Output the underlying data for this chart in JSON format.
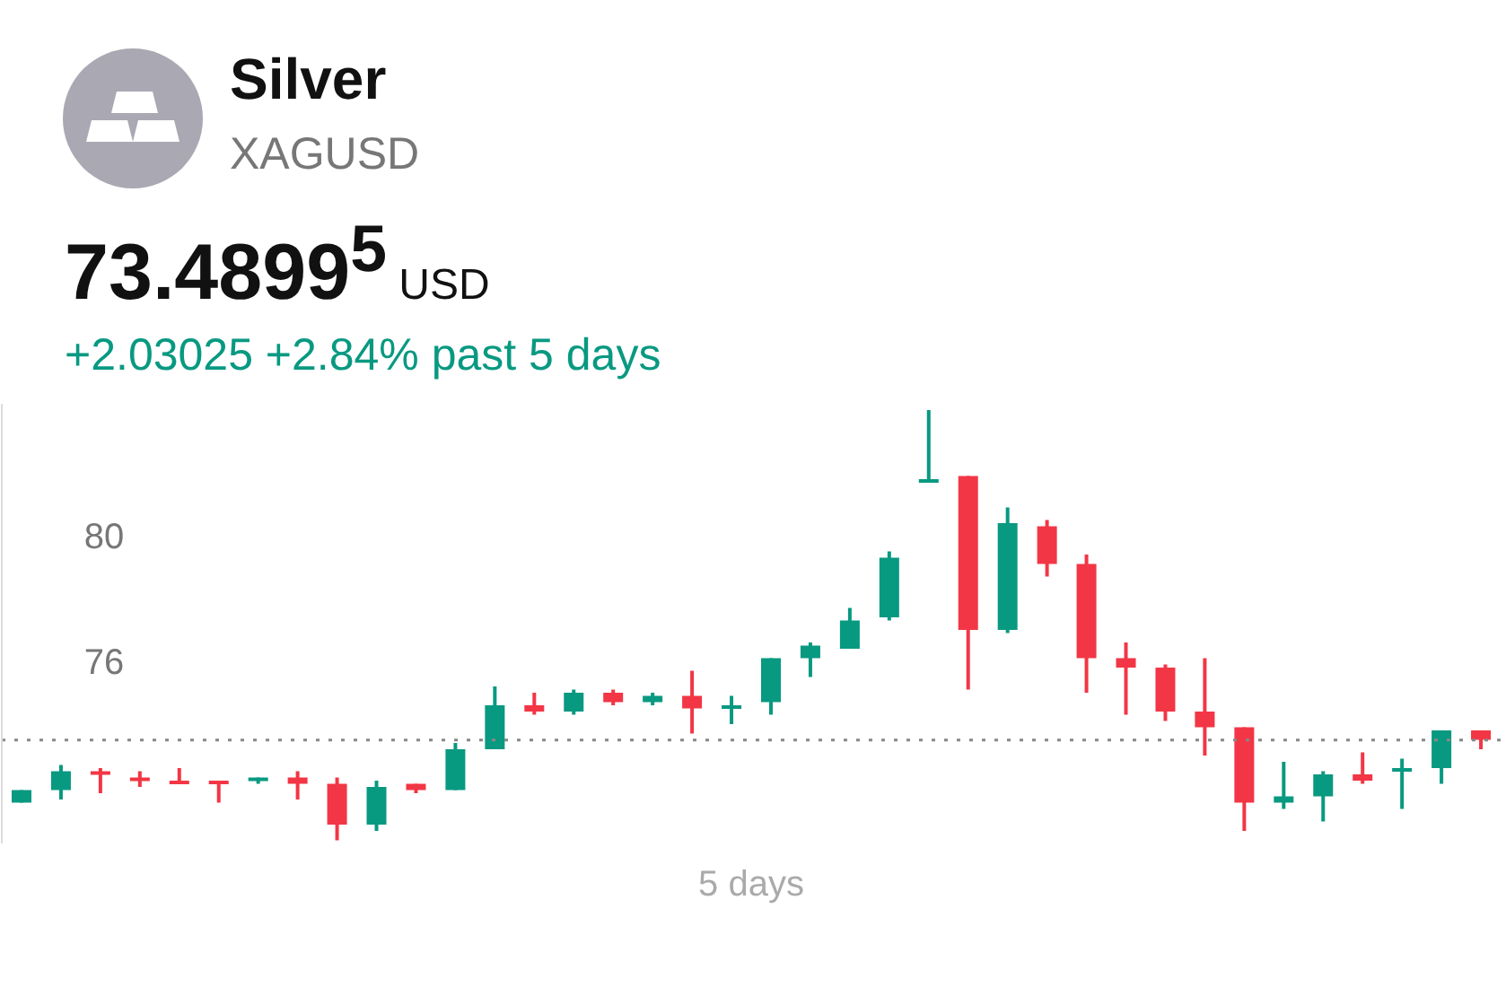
{
  "chart_data": {
    "type": "candlestick",
    "title": "Silver",
    "subtitle": "XAGUSD",
    "xlabel": "5 days",
    "annotations": [
      "73.4899$^{5}$ USD",
      "+2.03025 +2.84% past 5 days"
    ],
    "categories": [
      null,
      null,
      null,
      null,
      null,
      null,
      null,
      null,
      null,
      null,
      null,
      null,
      null,
      null,
      null,
      null,
      null,
      null,
      null,
      null,
      null,
      null,
      null,
      null,
      null,
      null,
      null,
      null,
      null,
      null,
      null,
      null,
      null,
      null,
      null,
      null,
      null,
      null
    ],
    "ohlc": [
      [
        71.5,
        71.9,
        71.5,
        71.9
      ],
      [
        71.9,
        72.7,
        71.6,
        72.5
      ],
      [
        72.5,
        72.6,
        71.8,
        72.4
      ],
      [
        72.3,
        72.5,
        72.0,
        72.2
      ],
      [
        72.2,
        72.6,
        72.1,
        72.1
      ],
      [
        72.2,
        72.2,
        71.5,
        72.1
      ],
      [
        72.2,
        72.3,
        72.1,
        72.3
      ],
      [
        72.3,
        72.5,
        71.6,
        72.1
      ],
      [
        72.1,
        72.3,
        70.3,
        70.8
      ],
      [
        70.8,
        72.2,
        70.6,
        72.0
      ],
      [
        72.1,
        72.1,
        71.8,
        71.9
      ],
      [
        71.9,
        73.4,
        71.9,
        73.2
      ],
      [
        73.2,
        75.2,
        73.2,
        74.6
      ],
      [
        74.6,
        75.0,
        74.3,
        74.4
      ],
      [
        74.4,
        75.1,
        74.3,
        75.0
      ],
      [
        75.0,
        75.1,
        74.6,
        74.7
      ],
      [
        74.7,
        75.0,
        74.6,
        74.9
      ],
      [
        74.9,
        75.7,
        73.7,
        74.5
      ],
      [
        74.5,
        74.9,
        74.0,
        74.6
      ],
      [
        74.7,
        76.1,
        74.3,
        76.1
      ],
      [
        76.1,
        76.6,
        75.5,
        76.5
      ],
      [
        76.4,
        77.7,
        76.4,
        77.3
      ],
      [
        77.4,
        79.5,
        77.3,
        79.3
      ],
      [
        81.7,
        84.0,
        81.7,
        81.8
      ],
      [
        81.9,
        81.9,
        75.1,
        77.0
      ],
      [
        77.0,
        80.9,
        76.9,
        80.4
      ],
      [
        80.3,
        80.5,
        78.7,
        79.1
      ],
      [
        79.1,
        79.4,
        75.0,
        76.1
      ],
      [
        76.1,
        76.6,
        74.3,
        75.8
      ],
      [
        75.8,
        75.9,
        74.1,
        74.4
      ],
      [
        74.4,
        76.1,
        73.0,
        73.9
      ],
      [
        73.9,
        73.9,
        70.6,
        71.5
      ],
      [
        71.5,
        72.8,
        71.3,
        71.7
      ],
      [
        71.7,
        72.5,
        70.9,
        72.4
      ],
      [
        72.4,
        73.1,
        72.1,
        72.2
      ],
      [
        72.5,
        72.9,
        71.3,
        72.6
      ],
      [
        72.6,
        73.8,
        72.1,
        73.8
      ],
      [
        73.8,
        73.8,
        73.2,
        73.5
      ]
    ],
    "colors": [
      "#089981",
      "#089981",
      "#f23645",
      "#f23645",
      "#f23645",
      "#f23645",
      "#089981",
      "#f23645",
      "#f23645",
      "#089981",
      "#f23645",
      "#089981",
      "#089981",
      "#f23645",
      "#089981",
      "#f23645",
      "#089981",
      "#f23645",
      "#089981",
      "#089981",
      "#089981",
      "#089981",
      "#089981",
      "#089981",
      "#f23645",
      "#089981",
      "#f23645",
      "#f23645",
      "#f23645",
      "#f23645",
      "#f23645",
      "#f23645",
      "#089981",
      "#089981",
      "#f23645",
      "#089981",
      "#089981",
      "#f23645"
    ],
    "ylim": [
      70.2,
      84.2
    ],
    "yticks": [
      76,
      80
    ],
    "ref_lines": [
      {
        "axis": "y",
        "value": 73.49,
        "color": "#888888",
        "line_style": "dotted"
      }
    ],
    "grid": false,
    "legend": false
  }
}
